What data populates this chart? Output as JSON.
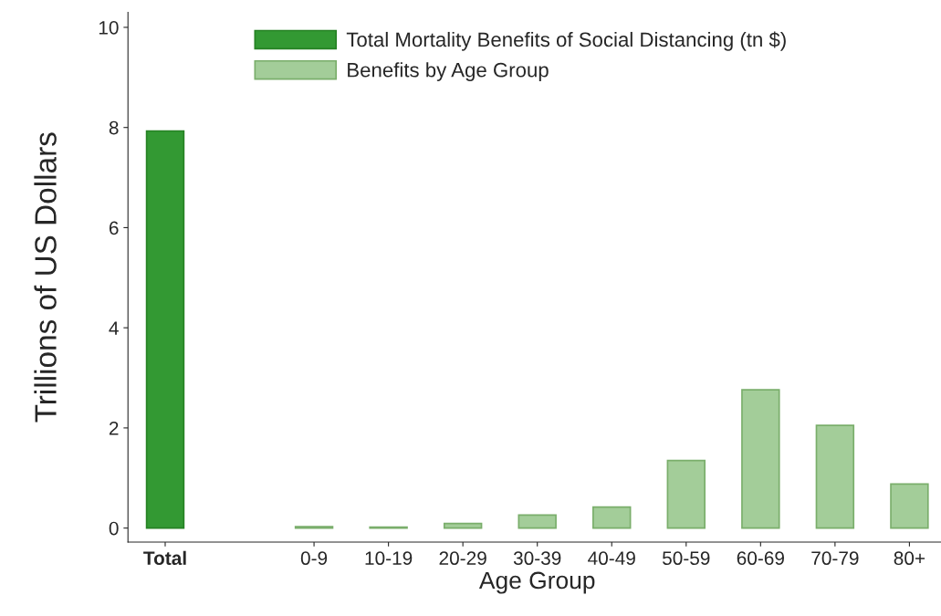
{
  "chart_data": {
    "type": "bar",
    "xlabel": "Age Group",
    "ylabel": "Trillions of US Dollars",
    "categories": [
      "Total",
      null,
      "0-9",
      "10-19",
      "20-29",
      "30-39",
      "40-49",
      "50-59",
      "60-69",
      "70-79",
      "80+"
    ],
    "series": [
      {
        "name": "Total Mortality Benefits of Social Distancing (tn $)",
        "color": "#339933",
        "values": [
          7.93,
          null,
          null,
          null,
          null,
          null,
          null,
          null,
          null,
          null,
          null
        ]
      },
      {
        "name": "Benefits by Age Group",
        "color": "#a3cd99",
        "values": [
          null,
          null,
          0.03,
          0.02,
          0.09,
          0.26,
          0.42,
          1.35,
          2.76,
          2.05,
          0.88
        ]
      }
    ],
    "ylim": [
      -0.28,
      10.3
    ],
    "yticks": [
      0,
      2,
      4,
      6,
      8,
      10
    ],
    "grid": false,
    "legend": "top"
  }
}
